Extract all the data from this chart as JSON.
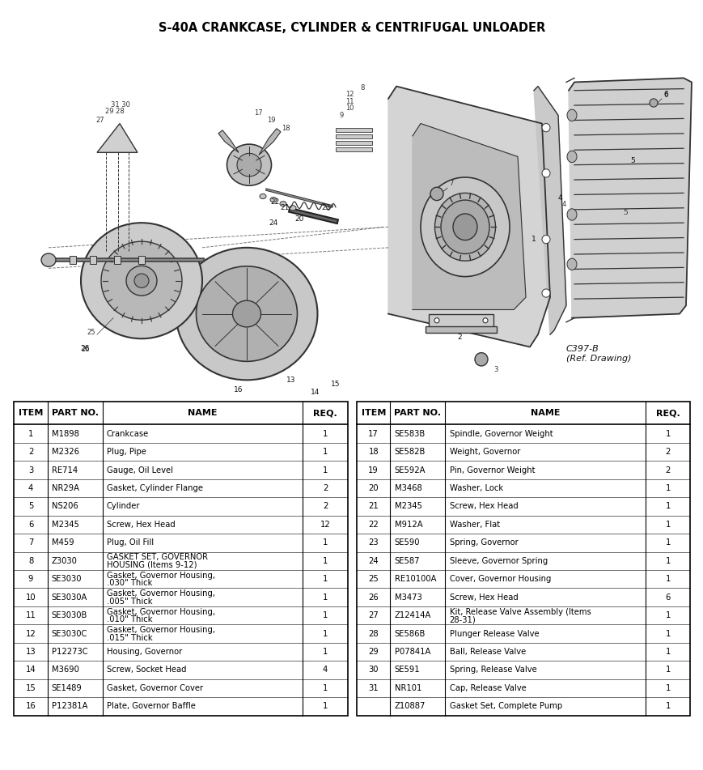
{
  "title": "S-40A CRANKCASE, CYLINDER & CENTRIFUGAL UNLOADER",
  "ref_label": "C397-B\n(Ref. Drawing)",
  "bg_color": "#ffffff",
  "title_fontsize": 10.5,
  "table_header": [
    "ITEM",
    "PART NO.",
    "NAME",
    "REQ."
  ],
  "left_table": [
    [
      "1",
      "M1898",
      "Crankcase",
      "1"
    ],
    [
      "2",
      "M2326",
      "Plug, Pipe",
      "1"
    ],
    [
      "3",
      "RE714",
      "Gauge, Oil Level",
      "1"
    ],
    [
      "4",
      "NR29A",
      "Gasket, Cylinder Flange",
      "2"
    ],
    [
      "5",
      "NS206",
      "Cylinder",
      "2"
    ],
    [
      "6",
      "M2345",
      "Screw, Hex Head",
      "12"
    ],
    [
      "7",
      "M459",
      "Plug, Oil Fill",
      "1"
    ],
    [
      "8",
      "Z3030",
      "GASKET SET, GOVERNOR\nHOUSING (Items 9-12)",
      "1"
    ],
    [
      "9",
      "SE3030",
      "Gasket, Governor Housing,\n.030\" Thick",
      "1"
    ],
    [
      "10",
      "SE3030A",
      "Gasket, Governor Housing,\n.005\" Thick",
      "1"
    ],
    [
      "11",
      "SE3030B",
      "Gasket, Governor Housing,\n.010\" Thick",
      "1"
    ],
    [
      "12",
      "SE3030C",
      "Gasket, Governor Housing,\n.015\" Thick",
      "1"
    ],
    [
      "13",
      "P12273C",
      "Housing, Governor",
      "1"
    ],
    [
      "14",
      "M3690",
      "Screw, Socket Head",
      "4"
    ],
    [
      "15",
      "SE1489",
      "Gasket, Governor Cover",
      "1"
    ],
    [
      "16",
      "P12381A",
      "Plate, Governor Baffle",
      "1"
    ]
  ],
  "right_table": [
    [
      "17",
      "SE583B",
      "Spindle, Governor Weight",
      "1"
    ],
    [
      "18",
      "SE582B",
      "Weight, Governor",
      "2"
    ],
    [
      "19",
      "SE592A",
      "Pin, Governor Weight",
      "2"
    ],
    [
      "20",
      "M3468",
      "Washer, Lock",
      "1"
    ],
    [
      "21",
      "M2345",
      "Screw, Hex Head",
      "1"
    ],
    [
      "22",
      "M912A",
      "Washer, Flat",
      "1"
    ],
    [
      "23",
      "SE590",
      "Spring, Governor",
      "1"
    ],
    [
      "24",
      "SE587",
      "Sleeve, Governor Spring",
      "1"
    ],
    [
      "25",
      "RE10100A",
      "Cover, Governor Housing",
      "1"
    ],
    [
      "26",
      "M3473",
      "Screw, Hex Head",
      "6"
    ],
    [
      "27",
      "Z12414A",
      "Kit, Release Valve Assembly (Items\n28-31)",
      "1"
    ],
    [
      "28",
      "SE586B",
      "Plunger Release Valve",
      "1"
    ],
    [
      "29",
      "P07841A",
      "Ball, Release Valve",
      "1"
    ],
    [
      "30",
      "SE591",
      "Spring, Release Valve",
      "1"
    ],
    [
      "31",
      "NR101",
      "Cap, Release Valve",
      "1"
    ],
    [
      "",
      "Z10887",
      "Gasket Set, Complete Pump",
      "1"
    ]
  ],
  "border_color": "#000000",
  "text_color": "#000000",
  "header_fontsize": 8,
  "cell_fontsize": 7.2,
  "draw_color": "#333333",
  "draw_light": "#bbbbbb",
  "draw_mid": "#888888"
}
